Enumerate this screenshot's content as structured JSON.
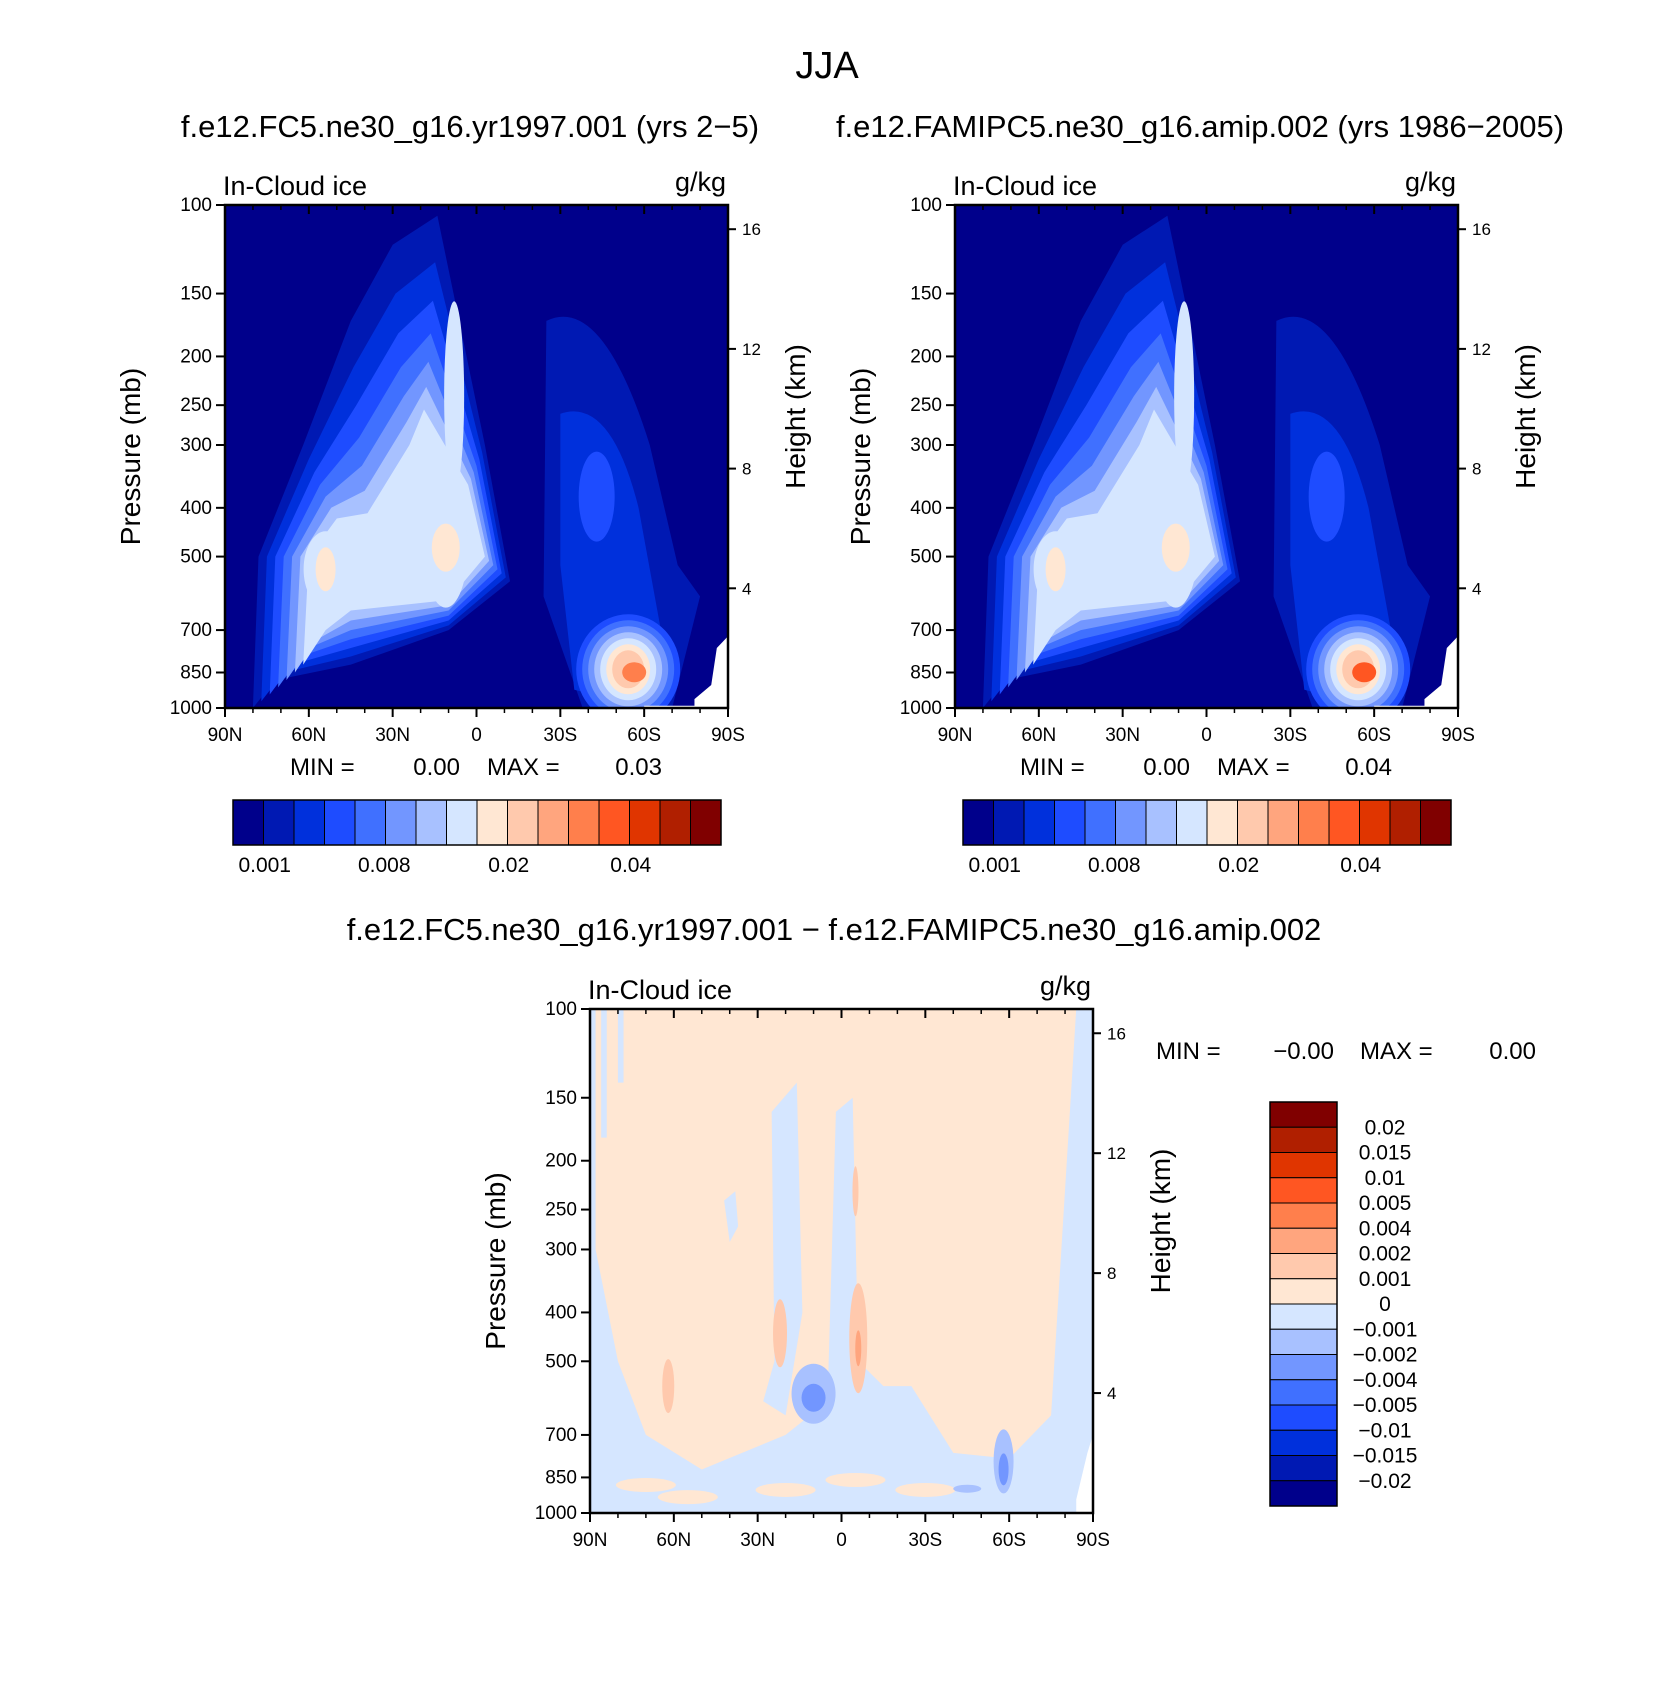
{
  "figure": {
    "season_title": "JJA"
  },
  "chart_data": [
    {
      "type": "heatmap",
      "title": "f.e12.FC5.ne30_g16.yr1997.001 (yrs 2-5)",
      "subtitle_left": "In-Cloud ice",
      "subtitle_right": "g/kg",
      "xlabel": "",
      "ylabel": "Pressure (mb)",
      "ylabel_right": "Height (km)",
      "x_ticks": [
        "90N",
        "60N",
        "30N",
        "0",
        "30S",
        "60S",
        "90S"
      ],
      "y_ticks": [
        100,
        150,
        200,
        250,
        300,
        400,
        500,
        700,
        850,
        1000
      ],
      "y_scale": "log",
      "ylim": [
        1000,
        100
      ],
      "y2_ticks": [
        16,
        12,
        8,
        4
      ],
      "min_label": "MIN =",
      "min_value": "0.00",
      "max_label": "MAX =",
      "max_value": "0.03",
      "colorbar_ticks": [
        "0.001",
        "0.008",
        "0.02",
        "0.04"
      ],
      "features": [
        {
          "lat": -55,
          "p": 830,
          "value": 0.035
        },
        {
          "lat": 11,
          "p": 480,
          "value": 0.025
        },
        {
          "lat": 54,
          "p": 530,
          "value": 0.015
        },
        {
          "lat": 8,
          "p": 240,
          "value": 0.01
        },
        {
          "lat": -43,
          "p": 380,
          "value": 0.004
        }
      ]
    },
    {
      "type": "heatmap",
      "title": "f.e12.FAMIPC5.ne30_g16.amip.002 (yrs 1986-2005)",
      "subtitle_left": "In-Cloud ice",
      "subtitle_right": "g/kg",
      "xlabel": "",
      "ylabel": "Pressure (mb)",
      "ylabel_right": "Height (km)",
      "x_ticks": [
        "90N",
        "60N",
        "30N",
        "0",
        "30S",
        "60S",
        "90S"
      ],
      "y_ticks": [
        100,
        150,
        200,
        250,
        300,
        400,
        500,
        700,
        850,
        1000
      ],
      "y_scale": "log",
      "ylim": [
        1000,
        100
      ],
      "y2_ticks": [
        16,
        12,
        8,
        4
      ],
      "min_label": "MIN =",
      "min_value": "0.00",
      "max_label": "MAX =",
      "max_value": "0.04",
      "colorbar_ticks": [
        "0.001",
        "0.008",
        "0.02",
        "0.04"
      ],
      "features": [
        {
          "lat": -55,
          "p": 830,
          "value": 0.04
        },
        {
          "lat": 11,
          "p": 480,
          "value": 0.025
        },
        {
          "lat": 54,
          "p": 530,
          "value": 0.015
        },
        {
          "lat": 8,
          "p": 240,
          "value": 0.01
        },
        {
          "lat": -43,
          "p": 380,
          "value": 0.004
        }
      ]
    },
    {
      "type": "heatmap",
      "title": "f.e12.FC5.ne30_g16.yr1997.001 - f.e12.FAMIPC5.ne30_g16.amip.002",
      "subtitle_left": "In-Cloud ice",
      "subtitle_right": "g/kg",
      "xlabel": "",
      "ylabel": "Pressure (mb)",
      "ylabel_right": "Height (km)",
      "x_ticks": [
        "90N",
        "60N",
        "30N",
        "0",
        "30S",
        "60S",
        "90S"
      ],
      "y_ticks": [
        100,
        150,
        200,
        250,
        300,
        400,
        500,
        700,
        850,
        1000
      ],
      "y_scale": "log",
      "ylim": [
        1000,
        100
      ],
      "y2_ticks": [
        16,
        12,
        8,
        4
      ],
      "min_label": "MIN =",
      "min_value": "-0.00",
      "max_label": "MAX =",
      "max_value": "0.00",
      "colorbar_ticks": [
        "0.02",
        "0.015",
        "0.01",
        "0.005",
        "0.004",
        "0.002",
        "0.001",
        "0",
        "-0.001",
        "-0.002",
        "-0.004",
        "-0.005",
        "-0.01",
        "-0.015",
        "-0.02"
      ],
      "features": [
        {
          "lat": 10,
          "p": 580,
          "value": -0.003
        },
        {
          "lat": -58,
          "p": 790,
          "value": -0.002
        },
        {
          "lat": 22,
          "p": 440,
          "value": 0.001
        },
        {
          "lat": -6,
          "p": 450,
          "value": 0.002
        },
        {
          "lat": 62,
          "p": 560,
          "value": 0.001
        }
      ]
    }
  ],
  "colors": {
    "sequential": [
      "#00008b",
      "#0019b3",
      "#0030dc",
      "#1e4cff",
      "#4070ff",
      "#7296ff",
      "#a8c1ff",
      "#d5e6ff",
      "#ffe7d3",
      "#ffc9ad",
      "#ffa57e",
      "#ff7f4c",
      "#ff5622",
      "#e03500",
      "#b01f00",
      "#800000"
    ],
    "diverging": [
      "#800000",
      "#b01f00",
      "#e03500",
      "#ff5622",
      "#ff7f4c",
      "#ffa57e",
      "#ffc9ad",
      "#ffe7d3",
      "#d5e6ff",
      "#a8c1ff",
      "#7296ff",
      "#4070ff",
      "#1e4cff",
      "#0030dc",
      "#0019b3",
      "#00008b"
    ]
  }
}
